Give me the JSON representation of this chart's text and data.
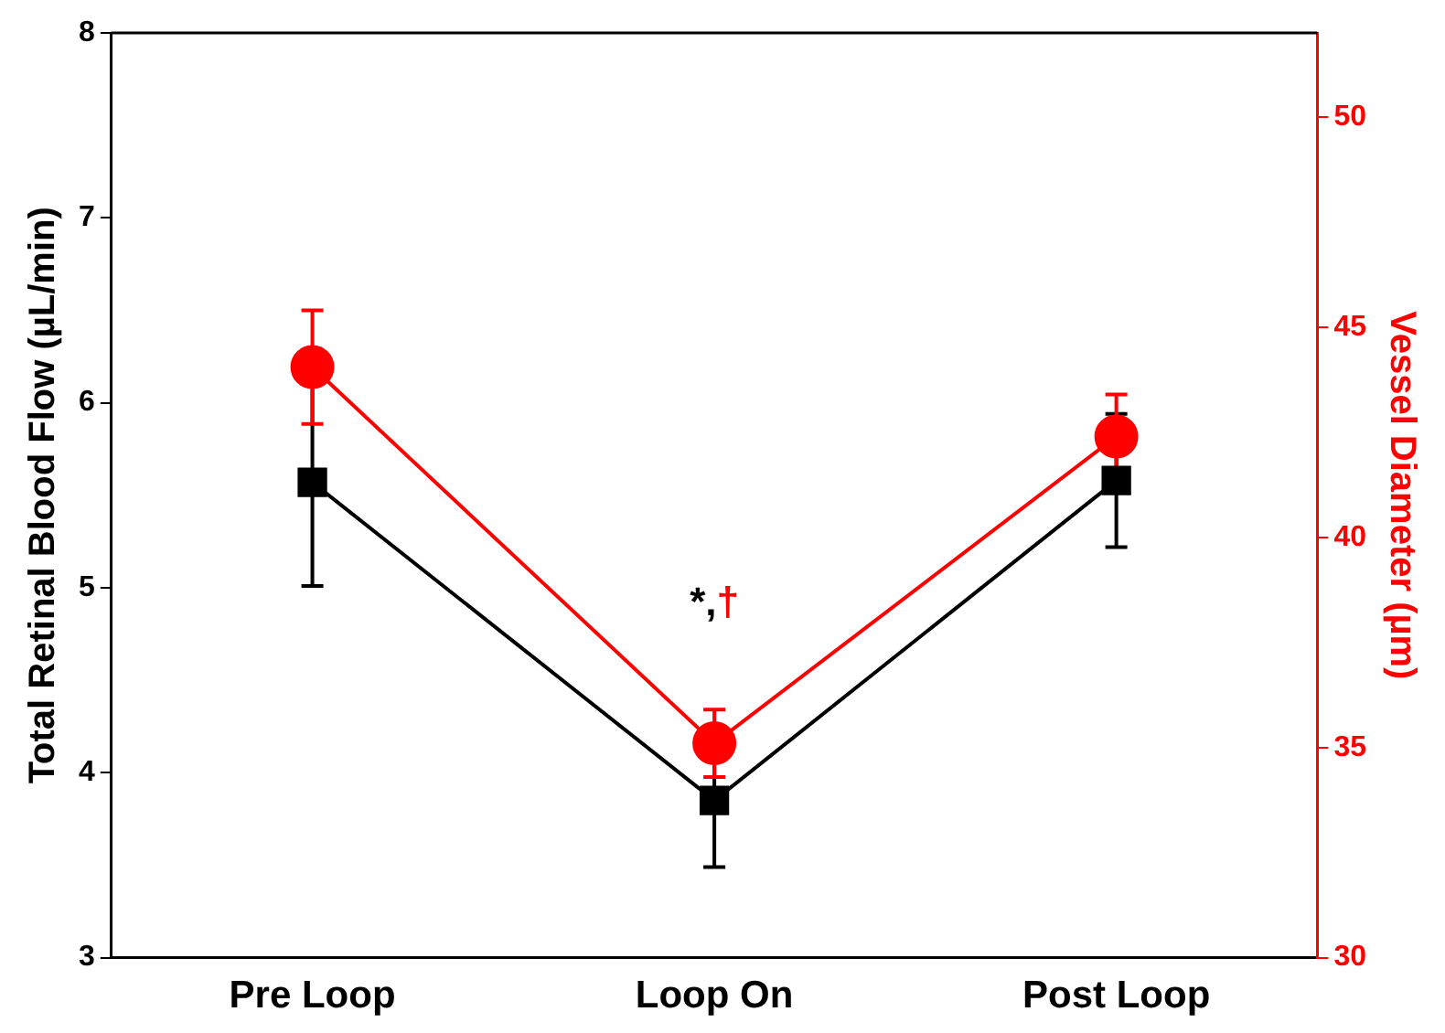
{
  "chart_data": {
    "type": "line",
    "categories": [
      "Pre Loop",
      "Loop On",
      "Post Loop"
    ],
    "ylabel": "Total Retinal Blood Flow (µL/min)",
    "y2label": "Vessel Diameter (µm)",
    "ylim": [
      3,
      8
    ],
    "yticks": [
      3,
      4,
      5,
      6,
      7,
      8
    ],
    "y2lim": [
      30,
      52
    ],
    "y2ticks": [
      30,
      35,
      40,
      45,
      50
    ],
    "grid": false,
    "legend": false,
    "series": [
      {
        "color": "#000000",
        "marker": "square",
        "values": [
          5.57,
          3.85,
          5.58
        ],
        "errors": [
          0.56,
          0.36,
          0.36
        ]
      },
      {
        "color": "#ff0000",
        "marker": "circle",
        "axis": "y2",
        "values": [
          44.05,
          35.1,
          42.4
        ],
        "errors": [
          1.35,
          0.8,
          1.0
        ]
      }
    ],
    "annotations": [
      "*,",
      "†"
    ]
  }
}
